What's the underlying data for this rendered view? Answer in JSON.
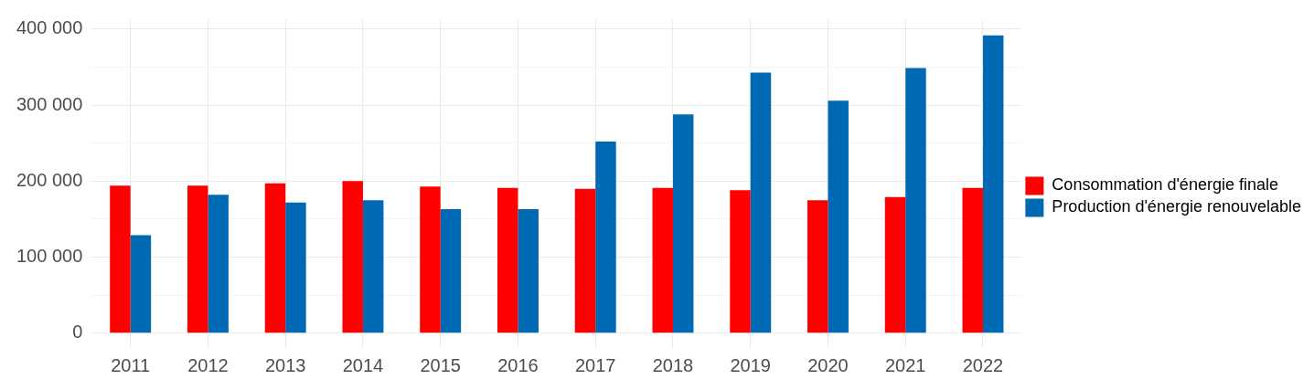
{
  "chart_data": {
    "type": "bar",
    "categories": [
      "2011",
      "2012",
      "2013",
      "2014",
      "2015",
      "2016",
      "2017",
      "2018",
      "2019",
      "2020",
      "2021",
      "2022"
    ],
    "series": [
      {
        "name": "Consommation d'énergie finale",
        "color": "#ff0000",
        "values": [
          194000,
          194000,
          197000,
          200000,
          193000,
          191000,
          190000,
          191000,
          188000,
          175000,
          179000,
          191000
        ]
      },
      {
        "name": "Production d'énergie renouvelable",
        "color": "#0069b4",
        "values": [
          129000,
          182000,
          172000,
          175000,
          163000,
          163000,
          252000,
          288000,
          343000,
          306000,
          349000,
          392000
        ]
      }
    ],
    "ylim": [
      -19600,
      412000
    ],
    "yticks": [
      {
        "value": 0,
        "label": "0"
      },
      {
        "value": 50000,
        "label": null
      },
      {
        "value": 100000,
        "label": "100 000"
      },
      {
        "value": 150000,
        "label": null
      },
      {
        "value": 200000,
        "label": "200 000"
      },
      {
        "value": 250000,
        "label": null
      },
      {
        "value": 300000,
        "label": "300 000"
      },
      {
        "value": 350000,
        "label": null
      },
      {
        "value": 400000,
        "label": "400 000"
      }
    ],
    "grid": true,
    "legend": "right"
  }
}
